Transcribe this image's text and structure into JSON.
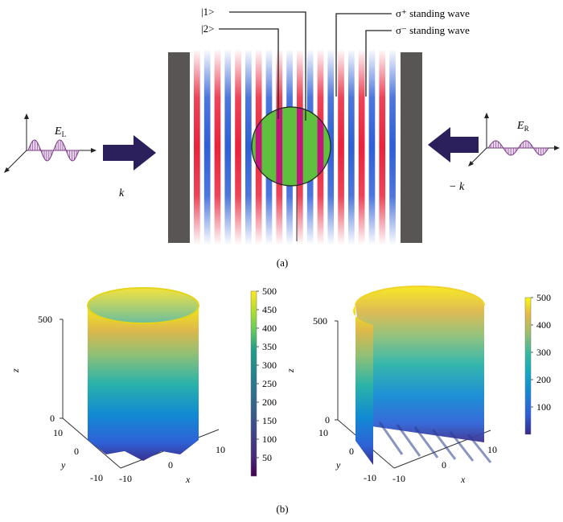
{
  "panel_a": {
    "caption": "(a)",
    "state_labels": [
      "|1>",
      "|2>"
    ],
    "wave_labels": [
      "σ⁺ standing wave",
      "σ⁻ standing wave"
    ],
    "left_field": "E",
    "left_field_sub": "L",
    "right_field": "E",
    "right_field_sub": "R",
    "left_wavevector": "k",
    "right_wavevector": "− k",
    "colors": {
      "red": "#e8243c",
      "blue": "#2f5fd6",
      "green": "#5fbf3f",
      "magenta": "#c4157a",
      "mirror": "#5a5555",
      "arrow": "#2b1f5c"
    }
  },
  "panel_b": {
    "caption": "(b)",
    "chart_data": [
      {
        "type": "surface3d",
        "description_free": true,
        "x_ticks": [
          "-10",
          "0",
          "10"
        ],
        "y_ticks": [
          "-10",
          "0",
          "10"
        ],
        "z_ticks": [
          "0",
          "500"
        ],
        "xlabel": "x",
        "ylabel": "y",
        "zlabel": "z",
        "colorbar_ticks": [
          50,
          100,
          150,
          200,
          250,
          300,
          350,
          400,
          450,
          500
        ],
        "colorbar_range": [
          0,
          500
        ]
      },
      {
        "type": "surface3d",
        "x_ticks": [
          "-10",
          "0",
          "10"
        ],
        "y_ticks": [
          "-10",
          "0",
          "10"
        ],
        "z_ticks": [
          "0",
          "500"
        ],
        "xlabel": "x",
        "ylabel": "y",
        "zlabel": "z",
        "colorbar_ticks": [
          100,
          200,
          300,
          400,
          500
        ],
        "colorbar_range": [
          0,
          500
        ]
      }
    ]
  }
}
